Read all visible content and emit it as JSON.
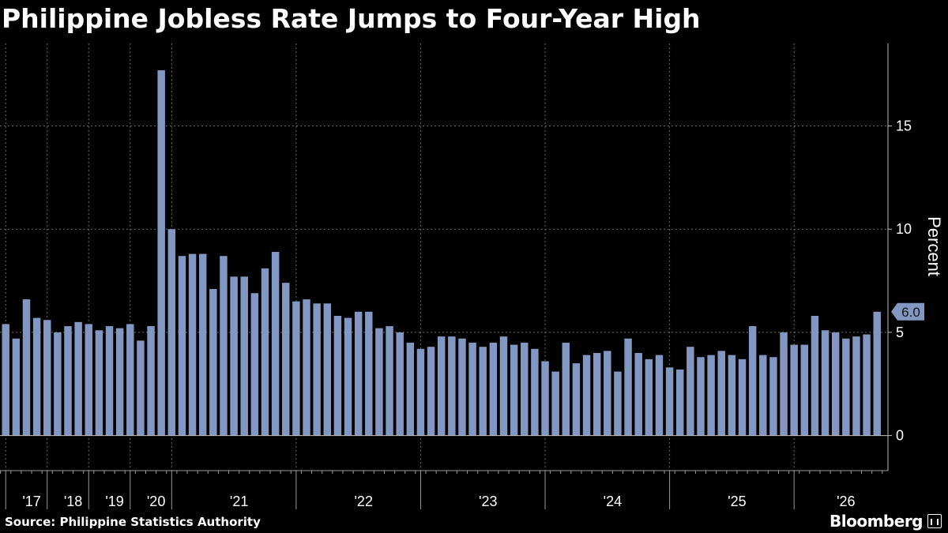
{
  "title": "Philippine Jobless Rate Jumps to Four-Year High",
  "source": "Source: Philippine Statistics Authority",
  "brand": "Bloomberg",
  "colors": {
    "background": "#000000",
    "bar": "#8298c2",
    "text": "#ffffff",
    "grid": "#6b6b6b"
  },
  "chart_data": {
    "type": "bar",
    "title": "Philippine Jobless Rate Jumps to Four-Year High",
    "ylabel": "Percent",
    "xlabel": "",
    "ylim": [
      -1.7,
      19
    ],
    "yticks": [
      0,
      5,
      10,
      15
    ],
    "grid": true,
    "last_value_label": "6.0",
    "year_labels": [
      {
        "label": "'17",
        "index": 2.5
      },
      {
        "label": "'18",
        "index": 6.5
      },
      {
        "label": "'19",
        "index": 10.5
      },
      {
        "label": "'20",
        "index": 14.5
      },
      {
        "label": "'21",
        "index": 22.5
      },
      {
        "label": "'22",
        "index": 34.5
      },
      {
        "label": "'23",
        "index": 46.5
      },
      {
        "label": "'24",
        "index": 58.5
      },
      {
        "label": "'25",
        "index": 70.5
      },
      {
        "label": "'26",
        "index": 81
      }
    ],
    "year_boundaries": [
      0.5,
      4.5,
      8.5,
      12.5,
      16.5,
      28.5,
      40.5,
      52.5,
      64.5,
      76.5
    ],
    "values": [
      5.4,
      4.7,
      6.6,
      5.7,
      5.6,
      5.0,
      5.3,
      5.5,
      5.4,
      5.1,
      5.3,
      5.2,
      5.4,
      4.6,
      5.3,
      17.7,
      10.0,
      8.7,
      8.8,
      8.8,
      7.1,
      8.7,
      7.7,
      7.7,
      6.9,
      8.1,
      8.9,
      7.4,
      6.5,
      6.6,
      6.4,
      6.4,
      5.8,
      5.7,
      6.0,
      6.0,
      5.2,
      5.3,
      5.0,
      4.5,
      4.2,
      4.3,
      4.8,
      4.8,
      4.7,
      4.5,
      4.3,
      4.5,
      4.8,
      4.4,
      4.5,
      4.2,
      3.6,
      3.1,
      4.5,
      3.5,
      3.9,
      4.0,
      4.1,
      3.1,
      4.7,
      4.0,
      3.7,
      3.9,
      3.3,
      3.2,
      4.3,
      3.8,
      3.9,
      4.1,
      3.9,
      3.7,
      5.3,
      3.9,
      3.8,
      5.0,
      4.4,
      4.4,
      5.8,
      5.1,
      5.0,
      4.7,
      4.8,
      4.9,
      6.0
    ]
  }
}
